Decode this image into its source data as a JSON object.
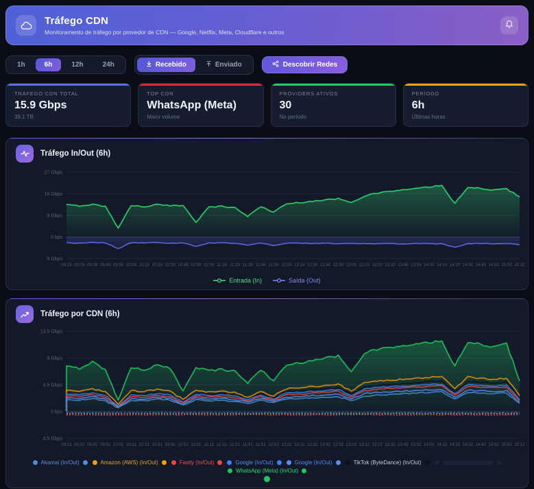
{
  "header": {
    "title": "Tráfego CDN",
    "subtitle": "Monitoramento de tráfego por provedor de CDN — Google, Netflix, Meta, Cloudflare e outros"
  },
  "icons": {
    "app": "cloud",
    "notifications": "bell",
    "received": "arrow-down-to-line",
    "sent": "arrow-up-from-line",
    "discover": "network-nodes",
    "chart1": "activity-pulse",
    "chart2": "trend-up"
  },
  "toolbar": {
    "ranges": [
      "1h",
      "6h",
      "12h",
      "24h"
    ],
    "active_range": "6h",
    "received_label": "Recebido",
    "sent_label": "Enviado",
    "discover_label": "Descobrir Redes"
  },
  "stats": [
    {
      "label": "TRÁFEGO CDN TOTAL",
      "value": "15.9 Gbps",
      "sub": "39.1 TB",
      "accent": "#5b6ee8"
    },
    {
      "label": "TOP CDN",
      "value": "WhatsApp (Meta)",
      "sub": "Maior volume",
      "accent": "#e02836"
    },
    {
      "label": "PROVIDERS ATIVOS",
      "value": "30",
      "sub": "No período",
      "accent": "#1ec95e"
    },
    {
      "label": "PERÍODO",
      "value": "6h",
      "sub": "Últimas horas",
      "accent": "#f5a10c"
    }
  ],
  "chart_data": [
    {
      "type": "area",
      "title": "Tráfego In/Out (6h)",
      "xlabel": "",
      "ylabel": "",
      "ylim": [
        -9,
        27
      ],
      "grid": true,
      "legend_position": "bottom",
      "yticks": [
        {
          "value": 27,
          "label": "27 Gbps"
        },
        {
          "value": 18,
          "label": "18 Gbps"
        },
        {
          "value": 9,
          "label": "9 Gbps"
        },
        {
          "value": 0,
          "label": "0 bps"
        },
        {
          "value": -9,
          "label": "9 Gbps"
        }
      ],
      "x": [
        "09:19",
        "09:29",
        "09:38",
        "09:49",
        "09:58",
        "10:09",
        "10:18",
        "10:29",
        "10:39",
        "10:48",
        "10:59",
        "11:09",
        "11:18",
        "11:29",
        "11:39",
        "11:48",
        "11:59",
        "12:09",
        "12:18",
        "12:30",
        "12:40",
        "12:50",
        "13:00",
        "13:10",
        "13:20",
        "13:30",
        "13:40",
        "13:50",
        "14:00",
        "14:10",
        "14:20",
        "14:30",
        "14:40",
        "14:50",
        "15:00",
        "15:11"
      ],
      "series": [
        {
          "name": "Entrada (In)",
          "color": "#31da70",
          "fill": true,
          "amp": 0.55,
          "width": 1.3,
          "values": [
            13.4,
            12.9,
            13.6,
            12.7,
            3.8,
            13.1,
            12.6,
            13.5,
            12.9,
            13.2,
            6.2,
            12.4,
            12.8,
            12.2,
            8.6,
            12.6,
            10.4,
            13.8,
            14.3,
            14.9,
            15.4,
            16.0,
            14.5,
            17.0,
            18.2,
            19.0,
            19.6,
            20.2,
            20.8,
            21.4,
            13.9,
            20.6,
            20.2,
            19.6,
            20.0,
            16.8
          ]
        },
        {
          "name": "Saída (Out)",
          "color": "#636ff0",
          "fill": true,
          "amp": 0.28,
          "width": 1.2,
          "values": [
            -2.4,
            -2.6,
            -2.3,
            -2.5,
            -4.8,
            -2.4,
            -2.5,
            -2.3,
            -2.6,
            -2.4,
            -3.9,
            -2.5,
            -2.4,
            -2.6,
            -3.4,
            -2.5,
            -3.6,
            -2.6,
            -2.5,
            -2.7,
            -2.6,
            -2.8,
            -2.7,
            -2.7,
            -2.8,
            -2.6,
            -2.9,
            -2.7,
            -2.8,
            -2.9,
            -4.2,
            -2.8,
            -2.7,
            -2.9,
            -2.8,
            -3.2
          ]
        }
      ],
      "legend": [
        {
          "label": "Entrada (In)",
          "color": "#4ade80"
        },
        {
          "label": "Saída (Out)",
          "color": "#818cf8"
        }
      ]
    },
    {
      "type": "line",
      "title": "Tráfego por CDN (6h)",
      "xlabel": "",
      "ylabel": "",
      "ylim": [
        -4.5,
        13.5
      ],
      "grid": true,
      "legend_position": "bottom",
      "yticks": [
        {
          "value": 13.5,
          "label": "13.5 Gbps"
        },
        {
          "value": 9,
          "label": "9 Gbps"
        },
        {
          "value": 4.5,
          "label": "4.5 Gbps"
        },
        {
          "value": 0,
          "label": "0 bps"
        },
        {
          "value": -4.5,
          "label": "4.5 Gbps"
        }
      ],
      "x": [
        "09:21",
        "09:31",
        "09:41",
        "09:51",
        "10:01",
        "10:11",
        "10:21",
        "10:31",
        "10:41",
        "10:51",
        "11:01",
        "11:11",
        "11:21",
        "11:31",
        "11:41",
        "11:51",
        "12:01",
        "12:11",
        "12:21",
        "12:32",
        "12:42",
        "12:52",
        "13:02",
        "13:12",
        "13:22",
        "13:32",
        "13:42",
        "13:52",
        "14:02",
        "14:12",
        "14:22",
        "14:32",
        "14:42",
        "14:52",
        "15:02",
        "15:12"
      ],
      "series": [
        {
          "name": "WhatsApp (Meta) (In)",
          "color": "#22c55e",
          "fill": true,
          "amp": 0.4,
          "width": 1.3,
          "start_zero": true,
          "values": [
            7.6,
            7.2,
            8.4,
            7.0,
            2.0,
            7.4,
            7.0,
            7.8,
            7.2,
            3.5,
            7.5,
            6.9,
            7.1,
            6.8,
            4.8,
            7.0,
            5.2,
            7.8,
            8.2,
            8.6,
            9.0,
            9.4,
            6.8,
            9.8,
            10.4,
            10.8,
            11.0,
            11.3,
            11.6,
            11.8,
            7.6,
            11.6,
            11.3,
            10.9,
            11.4,
            5.2
          ]
        },
        {
          "name": "TikTok (ByteDance) (In)",
          "color": "#0d1117",
          "fill": false,
          "amp": 0.25,
          "width": 1.3,
          "start_zero": true,
          "values": [
            3.1,
            3.0,
            3.3,
            2.9,
            1.0,
            3.0,
            2.9,
            3.2,
            3.0,
            1.7,
            3.1,
            2.9,
            3.0,
            2.8,
            2.1,
            3.0,
            2.2,
            3.3,
            3.5,
            3.7,
            3.8,
            4.0,
            2.9,
            4.2,
            4.4,
            4.6,
            4.7,
            4.8,
            5.0,
            5.1,
            3.3,
            5.0,
            4.9,
            4.7,
            4.9,
            2.2
          ]
        },
        {
          "name": "Amazon (AWS) (In)",
          "color": "#f59e0b",
          "fill": false,
          "amp": 0.25,
          "width": 1.1,
          "start_zero": true,
          "values": [
            3.6,
            3.4,
            3.8,
            3.3,
            1.2,
            3.5,
            3.4,
            3.7,
            3.4,
            2.0,
            3.6,
            3.3,
            3.4,
            3.2,
            2.4,
            3.4,
            2.6,
            3.8,
            4.0,
            4.2,
            4.4,
            4.6,
            3.4,
            4.8,
            5.1,
            5.3,
            5.4,
            5.6,
            5.7,
            5.9,
            3.8,
            5.8,
            5.6,
            5.4,
            5.6,
            2.6
          ]
        },
        {
          "name": "Google (In)",
          "color": "#3b82f6",
          "fill": false,
          "amp": 0.22,
          "width": 1.1,
          "start_zero": true,
          "values": [
            2.9,
            2.8,
            3.1,
            2.7,
            0.9,
            2.8,
            2.7,
            3.0,
            2.8,
            1.6,
            2.9,
            2.7,
            2.8,
            2.6,
            2.0,
            2.8,
            2.1,
            3.1,
            3.2,
            3.4,
            3.5,
            3.7,
            2.7,
            3.8,
            4.0,
            4.2,
            4.3,
            4.4,
            4.5,
            4.6,
            3.0,
            4.5,
            4.4,
            4.3,
            4.4,
            2.0
          ]
        },
        {
          "name": "Fastly (In)",
          "color": "#ef4444",
          "fill": false,
          "amp": 0.22,
          "width": 1.1,
          "start_zero": true,
          "values": [
            2.6,
            2.5,
            2.8,
            2.4,
            0.8,
            2.5,
            2.4,
            2.7,
            2.5,
            1.4,
            2.6,
            2.4,
            2.5,
            2.3,
            1.8,
            2.5,
            1.9,
            2.8,
            2.9,
            3.1,
            3.2,
            3.4,
            2.4,
            3.5,
            3.7,
            3.9,
            4.0,
            4.1,
            4.2,
            4.3,
            2.8,
            4.2,
            4.1,
            4.0,
            4.1,
            1.8
          ]
        },
        {
          "name": "Google (In) 2",
          "color": "#5c8df5",
          "fill": false,
          "amp": 0.22,
          "width": 1.1,
          "start_zero": true,
          "values": [
            2.3,
            2.2,
            2.5,
            2.1,
            0.7,
            2.2,
            2.1,
            2.4,
            2.2,
            1.2,
            2.3,
            2.1,
            2.2,
            2.0,
            1.6,
            2.2,
            1.7,
            2.4,
            2.5,
            2.7,
            2.8,
            2.9,
            2.1,
            3.0,
            3.2,
            3.3,
            3.4,
            3.5,
            3.6,
            3.7,
            2.4,
            3.6,
            3.5,
            3.4,
            3.5,
            1.6
          ]
        },
        {
          "name": "Akamai (In)",
          "color": "#4a90d9",
          "fill": false,
          "amp": 0.2,
          "width": 1.1,
          "start_zero": true,
          "values": [
            2.0,
            1.9,
            2.2,
            1.8,
            0.6,
            1.9,
            1.8,
            2.1,
            1.9,
            1.1,
            2.0,
            1.8,
            1.9,
            1.7,
            1.4,
            1.9,
            1.5,
            2.1,
            2.2,
            2.3,
            2.4,
            2.5,
            1.8,
            2.6,
            2.8,
            2.9,
            3.0,
            3.1,
            3.2,
            3.3,
            2.1,
            3.2,
            3.1,
            3.0,
            3.1,
            1.3
          ]
        }
      ],
      "out_series": [
        {
          "name": "WhatsApp (Meta) (Out)",
          "color": "#22c55e",
          "base": -0.6
        },
        {
          "name": "Amazon (AWS) (Out)",
          "color": "#f59e0b",
          "base": -0.42
        },
        {
          "name": "Fastly (Out)",
          "color": "#ef4444",
          "base": -0.5
        },
        {
          "name": "Google (Out)",
          "color": "#3b82f6",
          "base": -0.3
        },
        {
          "name": "Google (Out) 2",
          "color": "#5c8df5",
          "base": -0.36
        },
        {
          "name": "Akamai (Out)",
          "color": "#4a90d9",
          "base": -0.25
        }
      ],
      "baseline_dash": {
        "color": "#8b93a8",
        "base": -0.15
      },
      "legend": [
        {
          "label": "Akamai (In/Out)",
          "color": "#4a90d9",
          "text": "#5f8fe0"
        },
        {
          "label": "Amazon (AWS) (In/Out)",
          "color": "#f59e0b",
          "text": "#f0a42a"
        },
        {
          "label": "Fastly (In/Out)",
          "color": "#ef4444",
          "text": "#f05252"
        },
        {
          "label": "Google (In/Out)",
          "color": "#3b82f6",
          "text": "#4d8bf0"
        },
        {
          "label": "Google (In/Out)",
          "color": "#5c8df5",
          "text": "#4d8bf0"
        },
        {
          "label": "TikTok (ByteDance) (In/Out)",
          "color": "#0d1117",
          "text": "#c6cdd9"
        },
        {
          "label": "",
          "color": "#1b2338",
          "text": "#1b2338",
          "hidden": true
        },
        {
          "label": "WhatsApp (Meta) (In/Out)",
          "color": "#22c55e",
          "text": "#2fd96d"
        }
      ],
      "wrap_dot_color": "#22c55e"
    }
  ]
}
